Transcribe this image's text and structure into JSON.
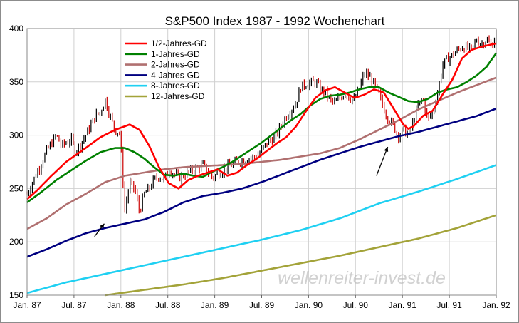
{
  "chart_data": {
    "type": "line",
    "title": "S&P500 Index 1987 - 1992 Wochenchart",
    "watermark": "wellenreiter-invest.de",
    "ylim": [
      150,
      400
    ],
    "y_ticks": [
      150,
      200,
      250,
      300,
      350,
      400
    ],
    "x_ticks": [
      "Jan. 87",
      "Jul. 87",
      "Jan. 88",
      "Jul. 88",
      "Jan. 89",
      "Jul. 89",
      "Jan. 90",
      "Jul. 90",
      "Jan. 91",
      "Jul. 91",
      "Jan. 92"
    ],
    "grid": true,
    "legend_position": "top-left",
    "price_color": "#000000",
    "series": [
      {
        "name": "1/2-Jahres-GD",
        "color": "#ff0000",
        "points": [
          [
            0,
            240
          ],
          [
            2,
            248
          ],
          [
            5,
            262
          ],
          [
            8,
            275
          ],
          [
            12,
            288
          ],
          [
            15,
            298
          ],
          [
            18,
            305
          ],
          [
            21,
            310
          ],
          [
            23,
            305
          ],
          [
            25,
            290
          ],
          [
            27,
            270
          ],
          [
            29,
            255
          ],
          [
            31,
            250
          ],
          [
            33,
            258
          ],
          [
            35,
            262
          ],
          [
            37,
            265
          ],
          [
            39,
            268
          ],
          [
            41,
            262
          ],
          [
            43,
            265
          ],
          [
            45,
            272
          ],
          [
            47,
            278
          ],
          [
            49,
            285
          ],
          [
            51,
            292
          ],
          [
            53,
            298
          ],
          [
            55,
            308
          ],
          [
            57,
            322
          ],
          [
            59,
            335
          ],
          [
            61,
            342
          ],
          [
            63,
            345
          ],
          [
            65,
            340
          ],
          [
            67,
            335
          ],
          [
            69,
            338
          ],
          [
            71,
            343
          ],
          [
            73,
            340
          ],
          [
            75,
            325
          ],
          [
            77,
            310
          ],
          [
            78,
            306
          ],
          [
            79,
            308
          ],
          [
            81,
            318
          ],
          [
            83,
            323
          ],
          [
            85,
            338
          ],
          [
            87,
            352
          ],
          [
            89,
            372
          ],
          [
            91,
            380
          ],
          [
            93,
            383
          ],
          [
            95,
            385
          ],
          [
            96,
            386
          ]
        ]
      },
      {
        "name": "1-Jahres-GD",
        "color": "#008000",
        "points": [
          [
            0,
            237
          ],
          [
            3,
            247
          ],
          [
            6,
            258
          ],
          [
            9,
            267
          ],
          [
            12,
            276
          ],
          [
            15,
            284
          ],
          [
            18,
            288
          ],
          [
            20,
            288
          ],
          [
            22,
            284
          ],
          [
            24,
            278
          ],
          [
            26,
            270
          ],
          [
            28,
            263
          ],
          [
            30,
            262
          ],
          [
            32,
            264
          ],
          [
            34,
            262
          ],
          [
            36,
            261
          ],
          [
            38,
            266
          ],
          [
            40,
            270
          ],
          [
            42,
            275
          ],
          [
            44,
            281
          ],
          [
            46,
            287
          ],
          [
            48,
            293
          ],
          [
            50,
            300
          ],
          [
            52,
            307
          ],
          [
            54,
            314
          ],
          [
            56,
            320
          ],
          [
            58,
            328
          ],
          [
            60,
            334
          ],
          [
            62,
            337
          ],
          [
            64,
            338
          ],
          [
            66,
            340
          ],
          [
            68,
            343
          ],
          [
            70,
            345
          ],
          [
            72,
            345
          ],
          [
            74,
            340
          ],
          [
            76,
            336
          ],
          [
            78,
            332
          ],
          [
            80,
            331
          ],
          [
            82,
            334
          ],
          [
            84,
            340
          ],
          [
            86,
            343
          ],
          [
            88,
            345
          ],
          [
            90,
            350
          ],
          [
            92,
            356
          ],
          [
            94,
            364
          ],
          [
            96,
            377
          ]
        ]
      },
      {
        "name": "2-Jahres-GD",
        "color": "#b07070",
        "points": [
          [
            0,
            212
          ],
          [
            4,
            222
          ],
          [
            8,
            235
          ],
          [
            12,
            245
          ],
          [
            16,
            256
          ],
          [
            20,
            262
          ],
          [
            24,
            265
          ],
          [
            28,
            268
          ],
          [
            32,
            270
          ],
          [
            36,
            271
          ],
          [
            40,
            272
          ],
          [
            44,
            273
          ],
          [
            48,
            275
          ],
          [
            52,
            277
          ],
          [
            56,
            280
          ],
          [
            60,
            283
          ],
          [
            64,
            288
          ],
          [
            68,
            296
          ],
          [
            72,
            305
          ],
          [
            76,
            314
          ],
          [
            80,
            324
          ],
          [
            84,
            332
          ],
          [
            88,
            340
          ],
          [
            92,
            347
          ],
          [
            96,
            354
          ]
        ]
      },
      {
        "name": "4-Jahres-GD",
        "color": "#000080",
        "points": [
          [
            0,
            186
          ],
          [
            4,
            193
          ],
          [
            8,
            201
          ],
          [
            12,
            208
          ],
          [
            16,
            213
          ],
          [
            20,
            217
          ],
          [
            24,
            221
          ],
          [
            28,
            228
          ],
          [
            32,
            237
          ],
          [
            36,
            243
          ],
          [
            40,
            246
          ],
          [
            44,
            250
          ],
          [
            48,
            256
          ],
          [
            52,
            263
          ],
          [
            56,
            270
          ],
          [
            60,
            277
          ],
          [
            64,
            283
          ],
          [
            68,
            289
          ],
          [
            72,
            294
          ],
          [
            76,
            299
          ],
          [
            80,
            303
          ],
          [
            84,
            308
          ],
          [
            88,
            313
          ],
          [
            92,
            318
          ],
          [
            96,
            325
          ]
        ]
      },
      {
        "name": "8-Jahres-GD",
        "color": "#1fd0f2",
        "points": [
          [
            0,
            152
          ],
          [
            8,
            162
          ],
          [
            16,
            170
          ],
          [
            24,
            178
          ],
          [
            32,
            186
          ],
          [
            40,
            194
          ],
          [
            48,
            202
          ],
          [
            56,
            211
          ],
          [
            64,
            222
          ],
          [
            72,
            236
          ],
          [
            80,
            247
          ],
          [
            88,
            259
          ],
          [
            96,
            272
          ]
        ]
      },
      {
        "name": "12-Jahres-GD",
        "color": "#a3a339",
        "points": [
          [
            16,
            150
          ],
          [
            24,
            155
          ],
          [
            32,
            160
          ],
          [
            40,
            166
          ],
          [
            48,
            173
          ],
          [
            56,
            180
          ],
          [
            64,
            187
          ],
          [
            72,
            195
          ],
          [
            80,
            203
          ],
          [
            88,
            213
          ],
          [
            96,
            225
          ]
        ]
      }
    ],
    "price_anchors": [
      [
        0,
        245
      ],
      [
        2,
        265
      ],
      [
        4,
        285
      ],
      [
        6,
        300
      ],
      [
        7,
        290
      ],
      [
        9,
        296
      ],
      [
        10,
        285
      ],
      [
        12,
        300
      ],
      [
        14,
        318
      ],
      [
        15,
        322
      ],
      [
        16,
        333
      ],
      [
        17,
        318
      ],
      [
        18,
        305
      ],
      [
        19,
        302
      ],
      [
        20,
        230
      ],
      [
        21,
        255
      ],
      [
        22,
        250
      ],
      [
        23,
        228
      ],
      [
        24,
        245
      ],
      [
        25,
        250
      ],
      [
        26,
        258
      ],
      [
        27,
        262
      ],
      [
        28,
        258
      ],
      [
        29,
        268
      ],
      [
        31,
        260
      ],
      [
        33,
        265
      ],
      [
        35,
        270
      ],
      [
        36,
        272
      ],
      [
        38,
        260
      ],
      [
        39,
        264
      ],
      [
        41,
        270
      ],
      [
        43,
        275
      ],
      [
        45,
        278
      ],
      [
        47,
        280
      ],
      [
        49,
        292
      ],
      [
        51,
        300
      ],
      [
        53,
        318
      ],
      [
        55,
        330
      ],
      [
        56,
        345
      ],
      [
        57,
        348
      ],
      [
        59,
        350
      ],
      [
        60,
        343
      ],
      [
        61,
        340
      ],
      [
        62,
        333
      ],
      [
        63,
        330
      ],
      [
        65,
        340
      ],
      [
        66,
        335
      ],
      [
        67,
        333
      ],
      [
        68,
        344
      ],
      [
        69,
        358
      ],
      [
        70,
        355
      ],
      [
        71,
        348
      ],
      [
        72,
        338
      ],
      [
        73,
        325
      ],
      [
        74,
        315
      ],
      [
        75,
        308
      ],
      [
        76,
        300
      ],
      [
        77,
        305
      ],
      [
        78,
        300
      ],
      [
        79,
        312
      ],
      [
        80,
        328
      ],
      [
        81,
        335
      ],
      [
        82,
        314
      ],
      [
        83,
        322
      ],
      [
        84,
        340
      ],
      [
        85,
        365
      ],
      [
        86,
        372
      ],
      [
        87,
        375
      ],
      [
        89,
        383
      ],
      [
        91,
        380
      ],
      [
        92,
        390
      ],
      [
        93,
        385
      ],
      [
        94,
        390
      ],
      [
        95,
        383
      ],
      [
        96,
        395
      ]
    ],
    "annotations": [
      {
        "type": "arrow",
        "from": [
          13.8,
          205
        ],
        "to": [
          15.8,
          217
        ]
      },
      {
        "type": "arrow",
        "from": [
          71.5,
          262
        ],
        "to": [
          73.8,
          289
        ]
      }
    ]
  }
}
